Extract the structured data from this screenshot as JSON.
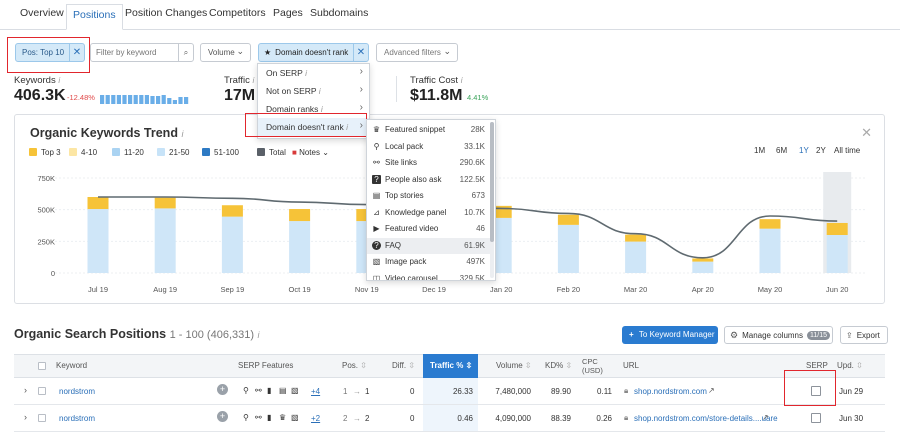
{
  "tabs": [
    "Overview",
    "Positions",
    "Position Changes",
    "Competitors",
    "Pages",
    "Subdomains"
  ],
  "filters": {
    "pos_label": "Pos: Top 10",
    "keyword_placeholder": "Filter by keyword",
    "volume_label": "Volume",
    "domain_label": "Domain doesn't rank",
    "advanced_label": "Advanced filters"
  },
  "kpis": {
    "keywords": {
      "label": "Keywords",
      "value": "406.3K",
      "change": "-12.48%"
    },
    "traffic": {
      "label": "Traffic",
      "value": "17M"
    },
    "traffic_cost": {
      "label": "Traffic Cost",
      "value": "$11.8M",
      "change": "4.41%"
    }
  },
  "serp_menu": [
    "On SERP",
    "Not on SERP",
    "Domain ranks",
    "Domain doesn't rank"
  ],
  "features_menu": [
    {
      "icon": "crown-icon",
      "glyph": "♛",
      "label": "Featured snippet",
      "count": "28K"
    },
    {
      "icon": "pin-icon",
      "glyph": "⚲",
      "label": "Local pack",
      "count": "33.1K"
    },
    {
      "icon": "link-icon",
      "glyph": "⚯",
      "label": "Site links",
      "count": "290.6K"
    },
    {
      "icon": "question-box-icon",
      "glyph": "?",
      "label": "People also ask",
      "count": "122.5K"
    },
    {
      "icon": "news-icon",
      "glyph": "▤",
      "label": "Top stories",
      "count": "673"
    },
    {
      "icon": "knowledge-icon",
      "glyph": "⊿",
      "label": "Knowledge panel",
      "count": "10.7K"
    },
    {
      "icon": "video-icon",
      "glyph": "▶",
      "label": "Featured video",
      "count": "46"
    },
    {
      "icon": "faq-icon",
      "glyph": "?",
      "label": "FAQ",
      "count": "61.9K"
    },
    {
      "icon": "image-icon",
      "glyph": "▧",
      "label": "Image pack",
      "count": "497K"
    },
    {
      "icon": "carousel-icon",
      "glyph": "◫",
      "label": "Video carousel",
      "count": "329.5K"
    }
  ],
  "trend": {
    "title": "Organic Keywords Trend",
    "legend": [
      {
        "label": "Top 3",
        "color": "#f6c338"
      },
      {
        "label": "4-10",
        "color": "#fce6a4"
      },
      {
        "label": "11-20",
        "color": "#aad3f2"
      },
      {
        "label": "21-50",
        "color": "#c7e3f8"
      },
      {
        "label": "51-100",
        "color": "#2d7ac4"
      },
      {
        "label": "Total",
        "color": "#5a6068"
      }
    ],
    "notes_label": "Notes",
    "ranges": [
      "1M",
      "6M",
      "1Y",
      "2Y",
      "All time"
    ],
    "active_range": "1Y"
  },
  "chart_data": {
    "type": "bar",
    "categories": [
      "Jul 19",
      "Aug 19",
      "Sep 19",
      "Oct 19",
      "Nov 19",
      "Dec 19",
      "Jan 20",
      "Feb 20",
      "Mar 20",
      "Apr 20",
      "May 20",
      "Jun 20"
    ],
    "series": [
      {
        "name": "Top 3",
        "values": [
          95,
          85,
          90,
          95,
          95,
          95,
          95,
          80,
          55,
          25,
          75,
          95
        ]
      },
      {
        "name": "4-10",
        "values": [
          0,
          0,
          0,
          0,
          0,
          0,
          0,
          0,
          0,
          0,
          0,
          0
        ]
      },
      {
        "name": "21-50",
        "values": [
          505,
          510,
          445,
          410,
          410,
          400,
          435,
          380,
          248,
          90,
          350,
          300
        ]
      },
      {
        "name": "Total",
        "values": [
          600,
          600,
          590,
          560,
          540,
          530,
          510,
          470,
          310,
          120,
          450,
          410
        ]
      }
    ],
    "yticks": [
      "0",
      "250K",
      "500K",
      "750K"
    ],
    "ylim": [
      0,
      750
    ]
  },
  "positions": {
    "title": "Organic Search Positions",
    "range": "1 - 100 (406,331)",
    "keyword_manager_label": "To Keyword Manager",
    "manage_columns_label": "Manage columns",
    "columns_badge": "11/15",
    "export_label": "Export",
    "headers": {
      "keyword": "Keyword",
      "serp": "SERP Features",
      "pos": "Pos.",
      "diff": "Diff.",
      "traffic": "Traffic %",
      "volume": "Volume",
      "kd": "KD%",
      "cpc": "CPC (USD)",
      "url": "URL",
      "serp2": "SERP",
      "upd": "Upd."
    },
    "rows": [
      {
        "keyword": "nordstrom",
        "more": "+4",
        "pos_from": "1",
        "pos_to": "1",
        "diff": "0",
        "traffic": "26.33",
        "volume": "7,480,000",
        "kd": "89.90",
        "cpc": "0.11",
        "url": "shop.nordstrom.com",
        "upd": "Jun 29"
      },
      {
        "keyword": "nordstrom",
        "more": "+2",
        "pos_from": "2",
        "pos_to": "2",
        "diff": "0",
        "traffic": "0.46",
        "volume": "4,090,000",
        "kd": "88.39",
        "cpc": "0.26",
        "url": "shop.nordstrom.com/store-details....uare",
        "upd": "Jun 30"
      }
    ]
  }
}
